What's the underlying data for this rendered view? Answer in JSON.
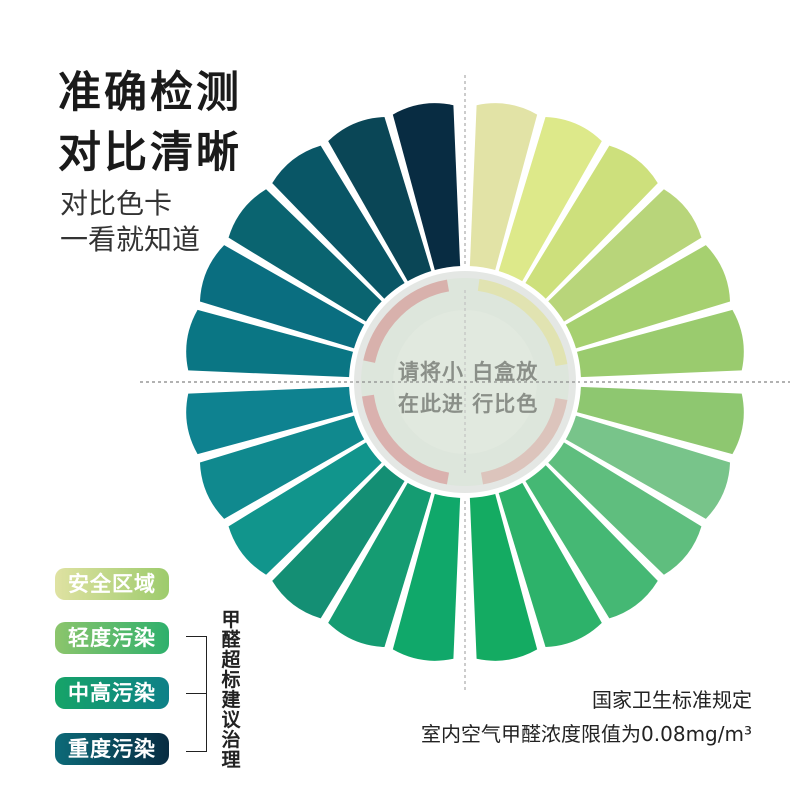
{
  "headline": {
    "line1": "准确检测",
    "line2": "对比清晰"
  },
  "subtitle": {
    "line1": "对比色卡",
    "line2": "一看就知道"
  },
  "center": {
    "line1": "请将小 白盒放",
    "line2": "在此进 行比色"
  },
  "wheel_colors": {
    "top_right": [
      "#e2e3a6",
      "#dde98a",
      "#cde07c",
      "#b8d57a",
      "#a6d070",
      "#9acb6e"
    ],
    "bottom_right": [
      "#8ec770",
      "#78c48a",
      "#5fbe7e",
      "#45b874",
      "#2db26a",
      "#14ab62"
    ],
    "bottom_left": [
      "#10a86a",
      "#159c72",
      "#148f74",
      "#11958c",
      "#10898e",
      "#0e8290"
    ],
    "top_left": [
      "#0a7684",
      "#0a6e80",
      "#0a6470",
      "#095666",
      "#0a4656",
      "#082c42"
    ]
  },
  "legend": [
    {
      "label": "安全区域",
      "from": "#dfe2a2",
      "to": "#9dcb6c"
    },
    {
      "label": "轻度污染",
      "from": "#8cc56c",
      "to": "#2eb06c"
    },
    {
      "label": "中高污染",
      "from": "#16a468",
      "to": "#0e8088"
    },
    {
      "label": "重度污染",
      "from": "#0c6a78",
      "to": "#082c42"
    }
  ],
  "bracket_label": "甲醛超标建议治理",
  "standard": {
    "line1": "国家卫生标准规定",
    "line2": "室内空气甲醛浓度限值为0.08mg/m³"
  }
}
